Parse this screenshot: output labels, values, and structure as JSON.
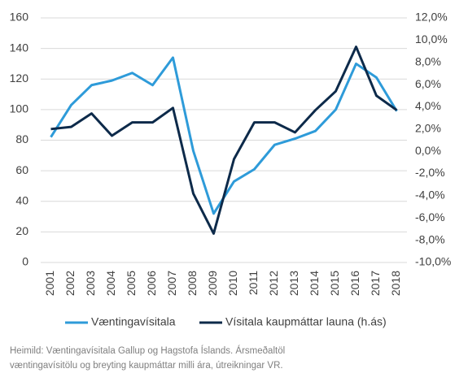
{
  "chart_data": {
    "type": "line",
    "categories": [
      "2001",
      "2002",
      "2003",
      "2004",
      "2005",
      "2006",
      "2007",
      "2008",
      "2009",
      "2010",
      "2011",
      "2012",
      "2013",
      "2014",
      "2015",
      "2016",
      "2017",
      "2018"
    ],
    "series": [
      {
        "name": "Væntingavísitala",
        "color": "#2e9bd9",
        "values": [
          82,
          103,
          116,
          119,
          124,
          116,
          134,
          73,
          32,
          53,
          61,
          77,
          81,
          86,
          100,
          130,
          121,
          99
        ]
      },
      {
        "name": "Vísitala kaupmáttar launa (h.ás)",
        "color": "#0d2a4a",
        "axis": "y2",
        "values": [
          2.0,
          2.2,
          3.4,
          1.4,
          2.6,
          2.6,
          3.9,
          -3.8,
          -7.4,
          -0.7,
          2.6,
          2.6,
          1.7,
          3.7,
          5.4,
          9.4,
          5.0,
          3.7
        ]
      }
    ],
    "ylim": [
      0,
      160
    ],
    "yticks": [
      0,
      20,
      40,
      60,
      80,
      100,
      120,
      140,
      160
    ],
    "y2lim": [
      -10,
      12
    ],
    "y2ticks": [
      {
        "value": -10,
        "label": "-10,0%"
      },
      {
        "value": -8,
        "label": "-8,0%"
      },
      {
        "value": -6,
        "label": "-6,0%"
      },
      {
        "value": -4,
        "label": "-4,0%"
      },
      {
        "value": -2,
        "label": "-2,0%"
      },
      {
        "value": 0,
        "label": "0,0%"
      },
      {
        "value": 2,
        "label": "2,0%"
      },
      {
        "value": 4,
        "label": "4,0%"
      },
      {
        "value": 6,
        "label": "6,0%"
      },
      {
        "value": 8,
        "label": "8,0%"
      },
      {
        "value": 10,
        "label": "10,0%"
      },
      {
        "value": 12,
        "label": "12,0%"
      }
    ],
    "grid": true,
    "legend": "bottom",
    "source": [
      "Heimild: Væntingavísitala Gallup og Hagstofa Íslands. Ársmeðaltöl",
      "væntingavísitölu og breyting kaupmáttar milli ára, útreikningar VR."
    ]
  }
}
